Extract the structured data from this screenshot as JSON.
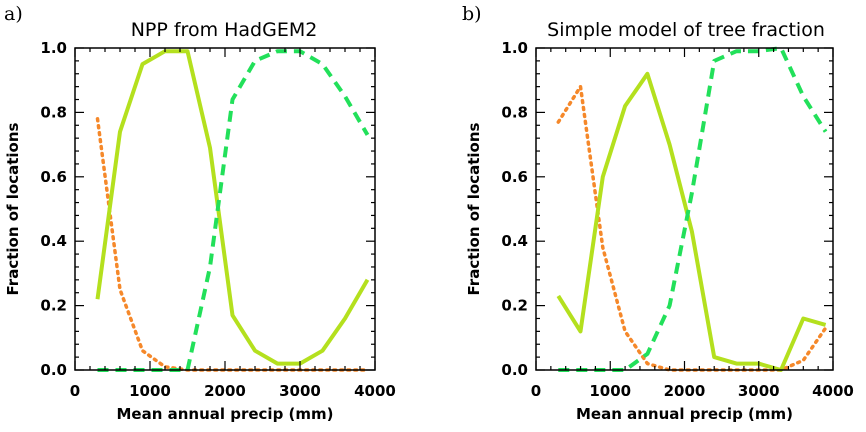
{
  "chart_data": [
    {
      "type": "line",
      "panel_label": "a)",
      "title": "NPP from HadGEM2",
      "xlabel": "Mean annual precip (mm)",
      "ylabel": "Fraction of locations",
      "xlim": [
        0,
        4000
      ],
      "ylim": [
        0,
        1.0
      ],
      "xticks": [
        0,
        1000,
        2000,
        3000,
        4000
      ],
      "yticks": [
        0.0,
        0.2,
        0.4,
        0.6,
        0.8,
        1.0
      ],
      "ytick_labels": [
        "0.0",
        "0.2",
        "0.4",
        "0.6",
        "0.8",
        "1.0"
      ],
      "grid": false,
      "series": [
        {
          "style": "dotted",
          "color": "#f5882a",
          "x": [
            300,
            600,
            900,
            1200,
            1500,
            1800,
            2100,
            2400,
            2700,
            3000,
            3300,
            3600,
            3900
          ],
          "values": [
            0.78,
            0.25,
            0.06,
            0.01,
            0.0,
            0.0,
            0.0,
            0.0,
            0.0,
            0.0,
            0.0,
            0.0,
            0.0
          ]
        },
        {
          "style": "solid",
          "color": "#b4e01e",
          "x": [
            300,
            600,
            900,
            1200,
            1500,
            1800,
            2100,
            2400,
            2700,
            3000,
            3300,
            3600,
            3900
          ],
          "values": [
            0.22,
            0.74,
            0.95,
            0.99,
            0.99,
            0.69,
            0.17,
            0.06,
            0.02,
            0.02,
            0.06,
            0.16,
            0.28
          ]
        },
        {
          "style": "dashed",
          "color": "#22e05a",
          "x": [
            300,
            600,
            900,
            1200,
            1500,
            1800,
            2100,
            2400,
            2700,
            3000,
            3300,
            3600,
            3900
          ],
          "values": [
            0.0,
            0.0,
            0.0,
            0.0,
            0.0,
            0.32,
            0.84,
            0.96,
            0.99,
            0.99,
            0.95,
            0.85,
            0.73
          ]
        }
      ]
    },
    {
      "type": "line",
      "panel_label": "b)",
      "title": "Simple model of tree fraction",
      "xlabel": "Mean annual precip (mm)",
      "ylabel": "Fraction of locations",
      "xlim": [
        0,
        4000
      ],
      "ylim": [
        0,
        1.0
      ],
      "xticks": [
        0,
        1000,
        2000,
        3000,
        4000
      ],
      "yticks": [
        0.0,
        0.2,
        0.4,
        0.6,
        0.8,
        1.0
      ],
      "ytick_labels": [
        "0.0",
        "0.2",
        "0.4",
        "0.6",
        "0.8",
        "1.0"
      ],
      "grid": false,
      "series": [
        {
          "style": "dotted",
          "color": "#f5882a",
          "x": [
            300,
            600,
            900,
            1200,
            1500,
            1800,
            2100,
            2400,
            2700,
            3000,
            3300,
            3600,
            3900
          ],
          "values": [
            0.77,
            0.88,
            0.38,
            0.12,
            0.02,
            0.0,
            0.0,
            0.0,
            0.0,
            0.0,
            0.0,
            0.03,
            0.13
          ]
        },
        {
          "style": "solid",
          "color": "#b4e01e",
          "x": [
            300,
            600,
            900,
            1200,
            1500,
            1800,
            2100,
            2400,
            2700,
            3000,
            3300,
            3600,
            3900
          ],
          "values": [
            0.23,
            0.12,
            0.6,
            0.82,
            0.92,
            0.7,
            0.43,
            0.04,
            0.02,
            0.02,
            0.0,
            0.16,
            0.14
          ]
        },
        {
          "style": "dashed",
          "color": "#22e05a",
          "x": [
            300,
            600,
            900,
            1200,
            1500,
            1800,
            2100,
            2400,
            2700,
            3000,
            3300,
            3600,
            3900
          ],
          "values": [
            0.0,
            0.0,
            0.0,
            0.0,
            0.05,
            0.2,
            0.55,
            0.96,
            0.99,
            0.99,
            1.0,
            0.85,
            0.74
          ]
        }
      ]
    }
  ]
}
